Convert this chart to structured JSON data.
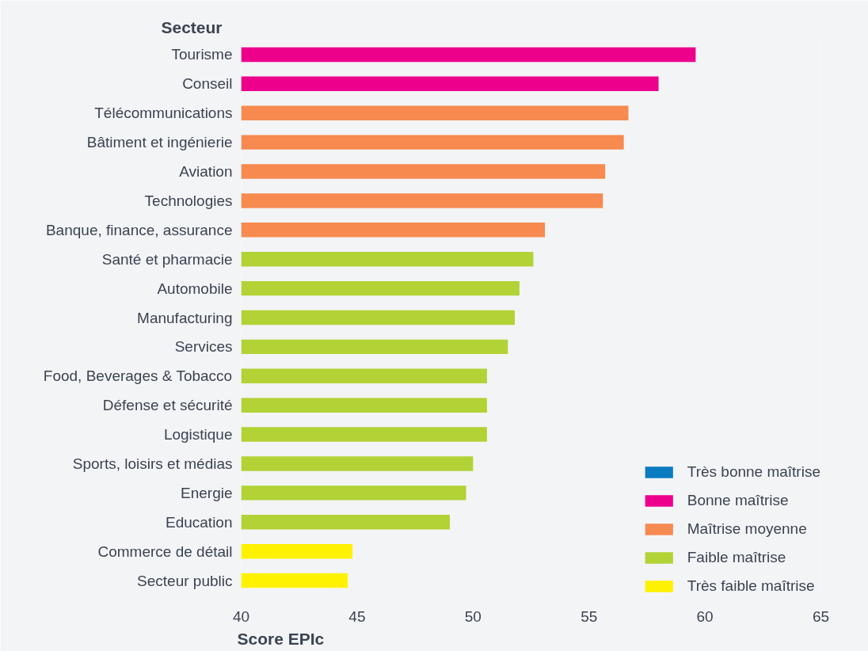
{
  "chart_data": {
    "type": "bar",
    "orientation": "horizontal",
    "ylabel": "Secteur",
    "xlabel": "Score EPIc",
    "categories": [
      "Tourisme",
      "Conseil",
      "Télécommunications",
      "Bâtiment et ingénierie",
      "Aviation",
      "Technologies",
      "Banque, finance, assurance",
      "Santé et pharmacie",
      "Automobile",
      "Manufacturing",
      "Services",
      "Food, Beverages & Tobacco",
      "Défense et sécurité",
      "Logistique",
      "Sports, loisirs et médias",
      "Energie",
      "Education",
      "Commerce de détail",
      "Secteur public"
    ],
    "series": [
      {
        "name": "Très bonne maîtrise",
        "color": "#0a7bc1",
        "values": [
          null,
          null,
          null,
          null,
          null,
          null,
          null,
          null,
          null,
          null,
          null,
          null,
          null,
          null,
          null,
          null,
          null,
          null,
          null
        ]
      },
      {
        "name": "Bonne maîtrise",
        "color": "#ec008c",
        "values": [
          59.6,
          58.0,
          null,
          null,
          null,
          null,
          null,
          null,
          null,
          null,
          null,
          null,
          null,
          null,
          null,
          null,
          null,
          null,
          null
        ]
      },
      {
        "name": "Maîtrise moyenne",
        "color": "#f68a4f",
        "values": [
          null,
          null,
          56.7,
          56.5,
          55.7,
          55.6,
          53.1,
          null,
          null,
          null,
          null,
          null,
          null,
          null,
          null,
          null,
          null,
          null,
          null
        ]
      },
      {
        "name": "Faible maîtrise",
        "color": "#b2d235",
        "values": [
          null,
          null,
          null,
          null,
          null,
          null,
          null,
          52.6,
          52.0,
          51.8,
          51.5,
          50.6,
          50.6,
          50.6,
          50.0,
          49.7,
          49.0,
          null,
          null
        ]
      },
      {
        "name": "Très faible maîtrise",
        "color": "#fff200",
        "values": [
          null,
          null,
          null,
          null,
          null,
          null,
          null,
          null,
          null,
          null,
          null,
          null,
          null,
          null,
          null,
          null,
          null,
          44.8,
          44.6
        ]
      }
    ],
    "xlim": [
      40,
      65
    ],
    "xticks": [
      40,
      45,
      50,
      55,
      60,
      65
    ],
    "grid": false,
    "legend": "bottom right"
  }
}
